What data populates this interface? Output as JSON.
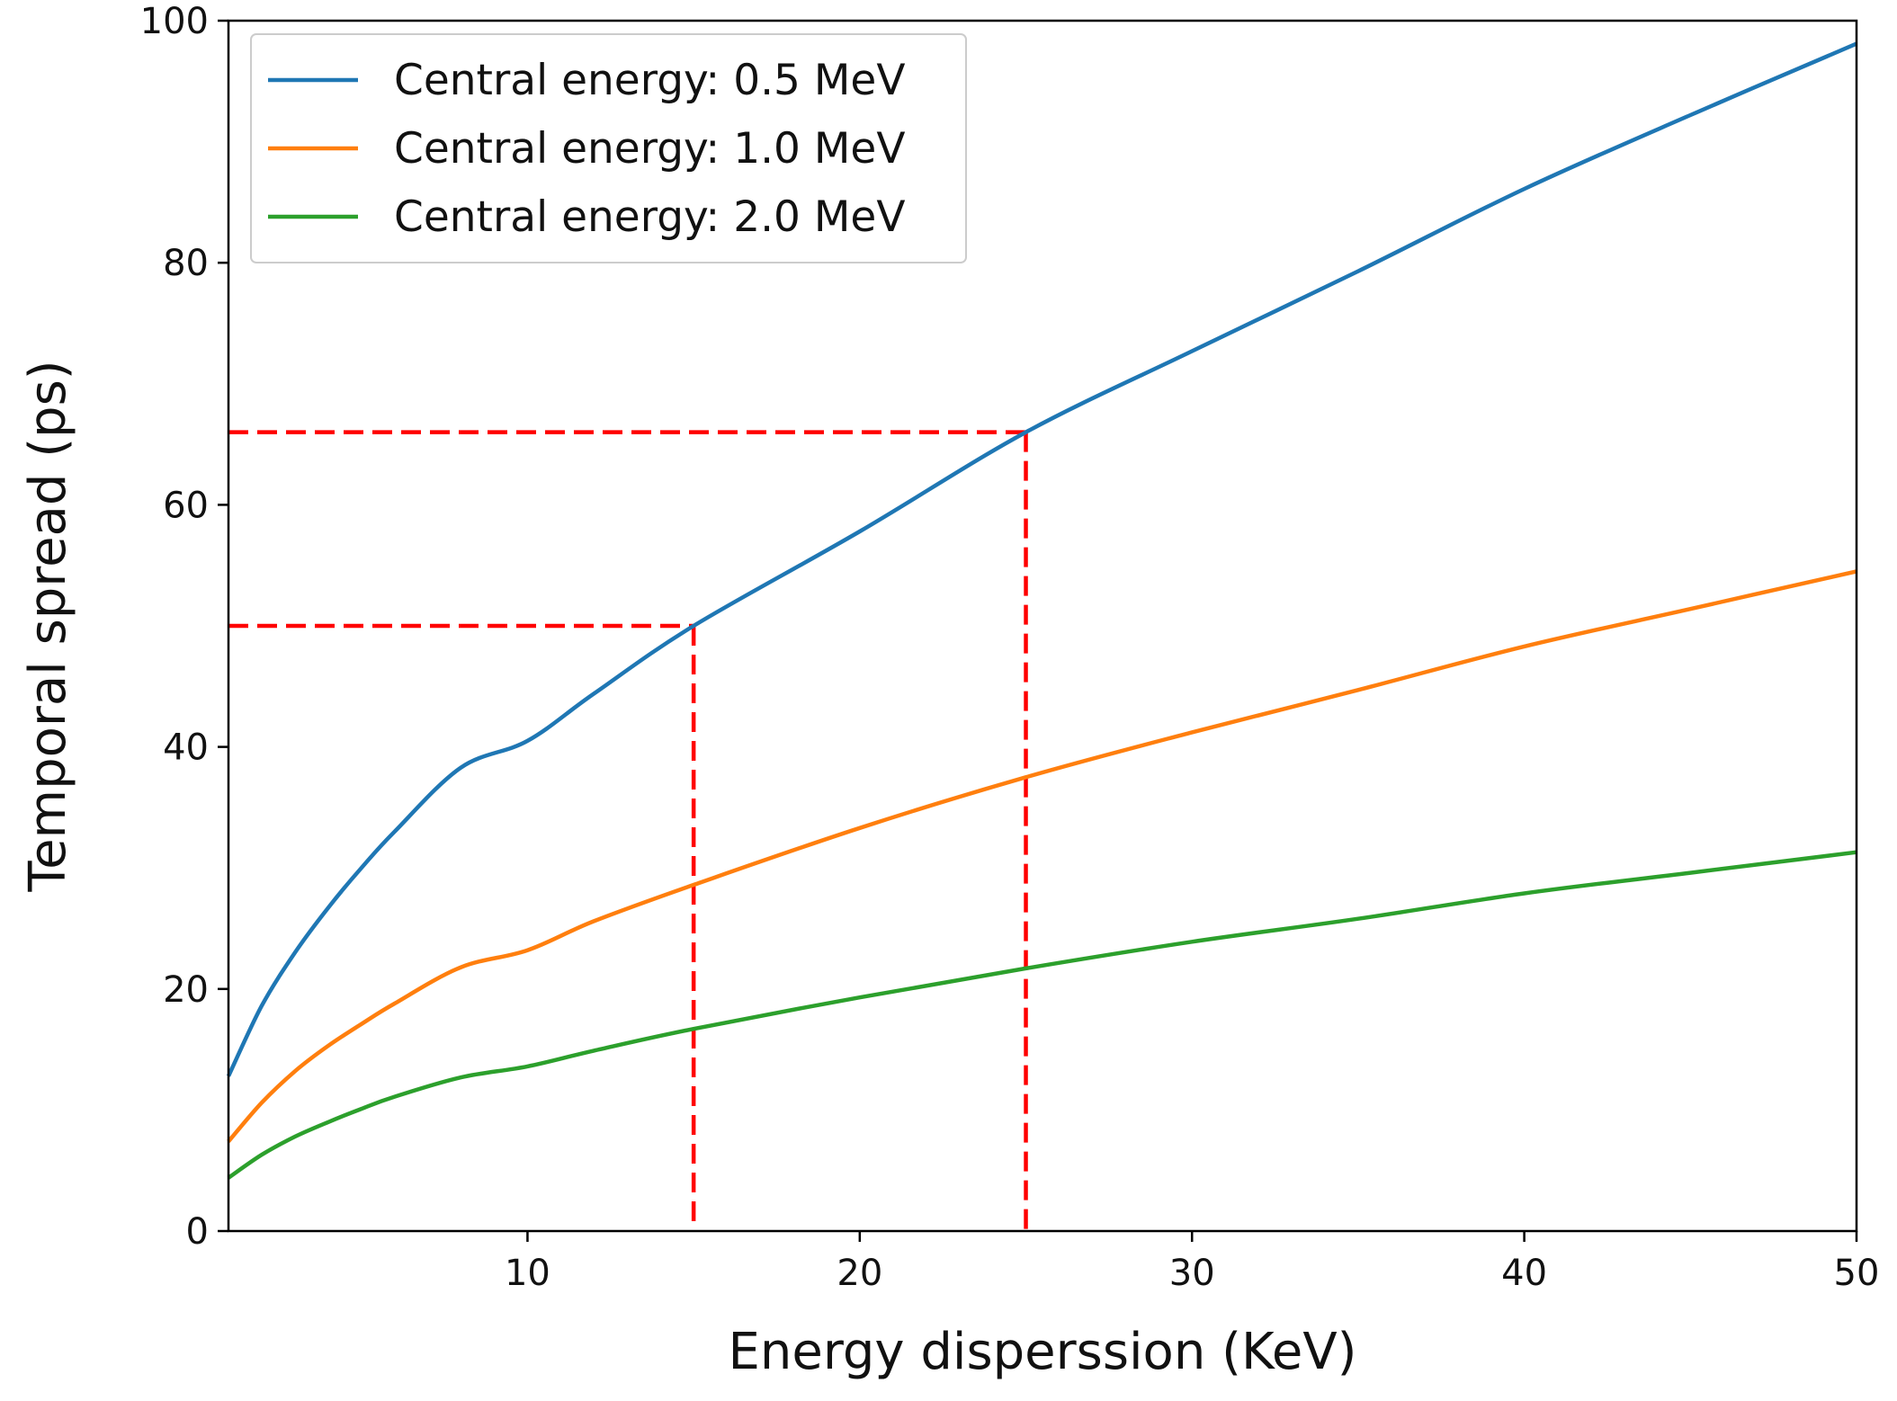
{
  "chart_data": {
    "type": "line",
    "title": "",
    "xlabel": "Energy disperssion (KeV)",
    "ylabel": "Temporal spread (ps)",
    "xlim": [
      1,
      50
    ],
    "ylim": [
      0,
      100
    ],
    "x_ticks": [
      10,
      20,
      30,
      40,
      50
    ],
    "y_ticks": [
      0,
      20,
      40,
      60,
      80,
      100
    ],
    "grid": false,
    "legend_position": "top-left",
    "x": [
      1,
      2,
      3,
      4,
      5,
      6,
      8,
      10,
      12,
      15,
      20,
      25,
      30,
      35,
      40,
      45,
      50
    ],
    "series": [
      {
        "name": "Central energy: 0.5 MeV",
        "color": "#1f77b4",
        "values": [
          12.8,
          18.6,
          23.0,
          26.7,
          30.0,
          33.0,
          38.3,
          40.5,
          44.4,
          50.0,
          57.8,
          66.0,
          72.7,
          79.3,
          86.1,
          92.2,
          98.1
        ]
      },
      {
        "name": "Central energy: 1.0 MeV",
        "color": "#ff7f0e",
        "values": [
          7.4,
          10.6,
          13.2,
          15.3,
          17.1,
          18.8,
          21.8,
          23.2,
          25.6,
          28.6,
          33.3,
          37.5,
          41.2,
          44.7,
          48.3,
          51.4,
          54.5
        ]
      },
      {
        "name": "Central energy: 2.0 MeV",
        "color": "#2ca02c",
        "values": [
          4.4,
          6.3,
          7.8,
          9.0,
          10.1,
          11.1,
          12.7,
          13.6,
          14.9,
          16.7,
          19.3,
          21.7,
          23.9,
          25.8,
          27.9,
          29.6,
          31.3
        ]
      }
    ],
    "reference_lines": [
      {
        "name": "ref-15keV",
        "x": 15,
        "y": 50.0,
        "color": "#ff0000"
      },
      {
        "name": "ref-25keV",
        "x": 25,
        "y": 66.0,
        "color": "#ff0000"
      }
    ]
  }
}
